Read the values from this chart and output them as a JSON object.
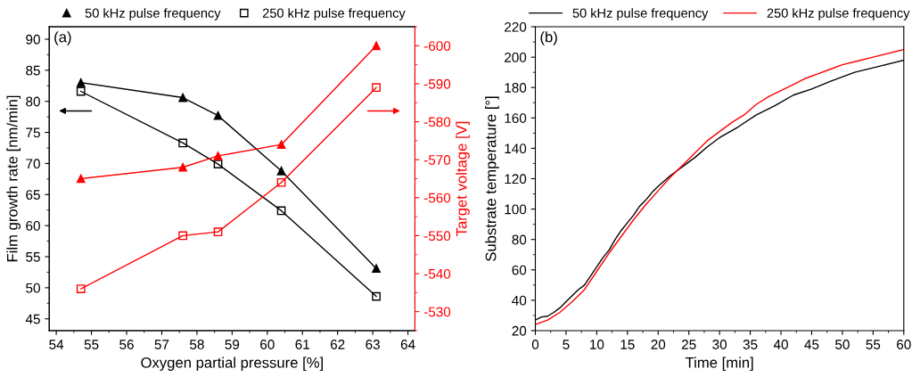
{
  "chart_data": [
    {
      "type": "line",
      "xlabel": "Oxygen partial pressure [%]",
      "ylabel": "Film growth rate [nm/min]",
      "y2label": "Target voltage [V]",
      "annotations": [
        "(a)"
      ],
      "x": [
        54.7,
        57.6,
        58.6,
        60.4,
        63.1
      ],
      "series": [
        {
          "name": "50 kHz pulse frequency",
          "color": "#000000",
          "marker": "triangle",
          "values": [
            83.0,
            80.6,
            77.7,
            68.8,
            53.1
          ]
        },
        {
          "name": "250 kHz pulse frequency",
          "color": "#000000",
          "marker": "square",
          "values": [
            81.6,
            73.3,
            69.9,
            62.4,
            48.6
          ]
        },
        {
          "color": "#ff0000",
          "marker": "triangle",
          "axis": "y2",
          "values": [
            -565,
            -568,
            -571,
            -574,
            -600
          ]
        },
        {
          "color": "#ff0000",
          "marker": "square",
          "axis": "y2",
          "values": [
            -536,
            -550,
            -551,
            -564,
            -589
          ]
        }
      ],
      "xlim": [
        53.8,
        64.2
      ],
      "xticks": [
        54,
        55,
        56,
        57,
        58,
        59,
        60,
        61,
        62,
        63,
        64
      ],
      "ylim": [
        43.1,
        92
      ],
      "yticks": [
        45,
        50,
        55,
        60,
        65,
        70,
        75,
        80,
        85,
        90
      ],
      "y2lim": [
        -525,
        -605
      ],
      "y2ticks": [
        -530,
        -540,
        -550,
        -560,
        -570,
        -580,
        -590,
        -600
      ],
      "grid": false,
      "legend": "top"
    },
    {
      "type": "line",
      "xlabel": "Time [min]",
      "ylabel": "Substrate temperature [°]",
      "annotations": [
        "(b)"
      ],
      "series": [
        {
          "name": "50 kHz pulse frequency",
          "color": "#000000",
          "x": [
            0,
            1,
            2,
            3,
            4,
            5,
            6,
            7,
            8,
            9,
            10,
            11,
            12,
            13,
            14,
            15,
            16,
            17,
            18,
            19,
            20,
            22,
            24,
            26,
            28,
            30,
            33,
            36,
            39,
            42,
            45,
            48,
            52,
            56,
            60
          ],
          "values": [
            27,
            29,
            29.5,
            32,
            35,
            39,
            43,
            47,
            50,
            56,
            62,
            68,
            73,
            80,
            86,
            91,
            96,
            102,
            106,
            111,
            115,
            122,
            128,
            134,
            141,
            147,
            154,
            162,
            168,
            175,
            179,
            184,
            190,
            194,
            198
          ]
        },
        {
          "name": "250 kHz pulse frequency",
          "color": "#ff0000",
          "x": [
            0,
            2,
            4,
            6,
            8,
            10,
            12,
            14,
            16,
            18,
            20,
            22,
            24,
            26,
            28,
            30,
            32,
            34,
            36,
            38,
            40,
            42,
            44,
            46,
            48,
            50,
            52,
            55,
            60
          ],
          "values": [
            24,
            27,
            32,
            39,
            47,
            59,
            71,
            82,
            93,
            103,
            112,
            121,
            129,
            137,
            145,
            151,
            157,
            162,
            169,
            174,
            178,
            182,
            186,
            189,
            192,
            195,
            197,
            200,
            205
          ]
        }
      ],
      "xlim": [
        0,
        60
      ],
      "xticks": [
        0,
        5,
        10,
        15,
        20,
        25,
        30,
        35,
        40,
        45,
        50,
        55,
        60
      ],
      "ylim": [
        20,
        220
      ],
      "yticks": [
        20,
        40,
        60,
        80,
        100,
        120,
        140,
        160,
        180,
        200,
        220
      ],
      "grid": false,
      "legend": "top",
      "marker": "none"
    }
  ]
}
